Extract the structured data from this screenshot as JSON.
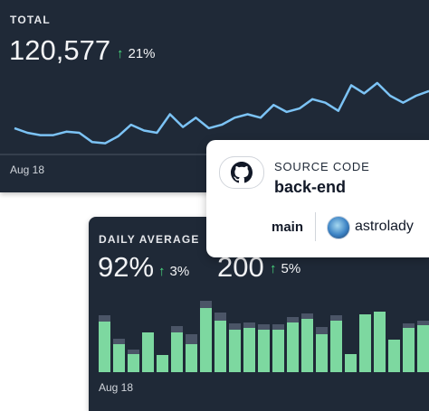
{
  "total_card": {
    "label": "TOTAL",
    "value": "120,577",
    "change": "21%",
    "x_label": "Aug 18",
    "line_color": "#7cc3f5"
  },
  "daily_card": {
    "label": "DAILY AVERAGE",
    "metrics": [
      {
        "value": "92%",
        "change": "3%"
      },
      {
        "value": "200",
        "change": "5%"
      }
    ],
    "x_label": "Aug 18",
    "bar_color": "#7dd8a0",
    "bar_top_color": "#4b5567"
  },
  "repo_card": {
    "icon": "github-icon",
    "kicker": "SOURCE CODE",
    "name": "back-end",
    "branch": "main",
    "user": "astrolady"
  },
  "chart_data": [
    {
      "type": "line",
      "series": [
        {
          "values": [
            58,
            54,
            52,
            52,
            55,
            54,
            46,
            45,
            51,
            61,
            56,
            54,
            70,
            59,
            67,
            58,
            61,
            67,
            70,
            67,
            78,
            72,
            75,
            83,
            80,
            73,
            95,
            88,
            97,
            86,
            80,
            86,
            90
          ]
        }
      ]
    },
    {
      "type": "bar",
      "series": [
        {
          "name": "base",
          "values": [
            56,
            31,
            20,
            44,
            19,
            44,
            31,
            71,
            57,
            47,
            49,
            47,
            47,
            55,
            59,
            42,
            57,
            20,
            64,
            67,
            36,
            49,
            52,
            52
          ]
        },
        {
          "name": "top",
          "values": [
            7,
            6,
            5,
            0,
            0,
            7,
            11,
            8,
            9,
            7,
            6,
            6,
            6,
            6,
            6,
            8,
            6,
            0,
            0,
            0,
            0,
            5,
            5,
            6
          ]
        }
      ]
    }
  ]
}
